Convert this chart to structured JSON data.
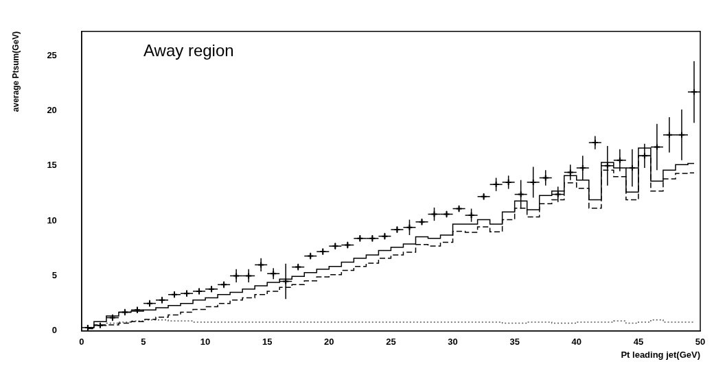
{
  "chart_data": {
    "type": "step",
    "title": "Away region",
    "xlabel": "Pt leading jet(GeV)",
    "ylabel": "average Ptsum(GeV)",
    "x": [
      0.5,
      1.5,
      2.5,
      3.5,
      4.5,
      5.5,
      6.5,
      7.5,
      8.5,
      9.5,
      10.5,
      11.5,
      12.5,
      13.5,
      14.5,
      15.5,
      16.5,
      17.5,
      18.5,
      19.5,
      20.5,
      21.5,
      22.5,
      23.5,
      24.5,
      25.5,
      26.5,
      27.5,
      28.5,
      29.5,
      30.5,
      31.5,
      32.5,
      33.5,
      34.5,
      35.5,
      36.5,
      37.5,
      38.5,
      39.5,
      40.5,
      41.5,
      42.5,
      43.5,
      44.5,
      45.5,
      46.5,
      47.5,
      48.5,
      49.5
    ],
    "xlim": [
      0,
      50
    ],
    "xticks": [
      0,
      5,
      10,
      15,
      20,
      25,
      30,
      35,
      40,
      45,
      50
    ],
    "ylim": [
      0,
      27.2
    ],
    "yticks": [
      0,
      5,
      10,
      15,
      20,
      25
    ],
    "grid": false,
    "legend": false,
    "series": [
      {
        "type": "scatter",
        "marker": "cross",
        "color": "#000000",
        "values": [
          0.3,
          0.5,
          1.2,
          1.7,
          1.9,
          2.5,
          2.8,
          3.3,
          3.4,
          3.6,
          3.8,
          4.2,
          5.0,
          5.0,
          6.0,
          5.2,
          4.5,
          5.8,
          6.8,
          7.2,
          7.7,
          7.8,
          8.4,
          8.4,
          8.6,
          9.2,
          9.4,
          9.9,
          10.6,
          10.6,
          11.1,
          10.5,
          12.2,
          13.3,
          13.5,
          12.4,
          13.5,
          13.9,
          12.4,
          14.4,
          14.8,
          17.1,
          15.0,
          15.5,
          14.8,
          15.9,
          16.7,
          17.8,
          17.8,
          21.7
        ],
        "errors": [
          0.2,
          0.2,
          0.3,
          0.3,
          0.3,
          0.3,
          0.3,
          0.3,
          0.3,
          0.3,
          0.3,
          0.3,
          0.6,
          0.6,
          0.6,
          0.5,
          1.6,
          0.3,
          0.3,
          0.3,
          0.3,
          0.3,
          0.3,
          0.3,
          0.3,
          0.3,
          0.7,
          0.3,
          0.6,
          0.3,
          0.3,
          0.6,
          0.3,
          0.6,
          0.6,
          1.3,
          1.4,
          0.7,
          0.7,
          0.7,
          1.1,
          0.6,
          1.8,
          1.0,
          1.7,
          1.1,
          2.1,
          1.6,
          2.3,
          2.8
        ],
        "xerrors": [
          0.5,
          0.5,
          0.5,
          0.5,
          0.5,
          0.5,
          0.5,
          0.5,
          0.5,
          0.5,
          0.5,
          0.5,
          0.5,
          0.5,
          0.5,
          0.5,
          0.5,
          0.5,
          0.5,
          0.5,
          0.5,
          0.5,
          0.5,
          0.5,
          0.5,
          0.5,
          0.5,
          0.5,
          0.5,
          0.5,
          0.5,
          0.5,
          0.5,
          0.5,
          0.5,
          0.5,
          0.5,
          0.5,
          0.5,
          0.5,
          0.5,
          0.5,
          0.5,
          0.5,
          0.5,
          0.5,
          0.5,
          0.5,
          0.5,
          0.5
        ]
      },
      {
        "type": "step",
        "color": "#000000",
        "line_style": "solid",
        "values": [
          0.3,
          0.85,
          1.35,
          1.7,
          1.8,
          1.9,
          2.1,
          2.3,
          2.5,
          2.8,
          3.0,
          3.3,
          3.5,
          3.8,
          4.1,
          4.4,
          4.7,
          4.95,
          5.3,
          5.6,
          5.85,
          6.25,
          6.6,
          6.9,
          7.3,
          7.6,
          7.9,
          8.55,
          8.4,
          8.7,
          9.7,
          9.7,
          10.1,
          9.7,
          10.8,
          11.8,
          11.0,
          12.3,
          12.7,
          14.1,
          13.7,
          11.9,
          15.3,
          14.8,
          12.6,
          16.6,
          13.6,
          14.6,
          15.1,
          15.2
        ]
      },
      {
        "type": "step",
        "color": "#000000",
        "line_style": "dashed",
        "values": [
          0.2,
          0.55,
          0.55,
          0.7,
          0.85,
          1.05,
          1.25,
          1.45,
          1.7,
          1.95,
          2.2,
          2.5,
          2.8,
          3.0,
          3.3,
          3.6,
          3.95,
          4.2,
          4.55,
          4.9,
          5.1,
          5.5,
          5.85,
          6.15,
          6.6,
          6.9,
          7.15,
          7.85,
          7.7,
          8.05,
          9.05,
          8.95,
          9.45,
          9.0,
          10.1,
          11.15,
          10.35,
          11.55,
          11.9,
          13.45,
          12.95,
          11.15,
          14.6,
          14.0,
          11.9,
          15.9,
          12.7,
          13.8,
          14.3,
          14.35
        ]
      },
      {
        "type": "step",
        "color": "#555555",
        "line_style": "dotted",
        "values": [
          0.2,
          0.5,
          0.7,
          0.8,
          0.9,
          1.0,
          1.0,
          0.9,
          0.9,
          0.8,
          0.8,
          0.8,
          0.8,
          0.8,
          0.8,
          0.8,
          0.8,
          0.8,
          0.8,
          0.8,
          0.8,
          0.8,
          0.8,
          0.8,
          0.8,
          0.8,
          0.8,
          0.8,
          0.8,
          0.8,
          0.8,
          0.8,
          0.8,
          0.8,
          0.7,
          0.7,
          0.8,
          0.8,
          0.7,
          0.7,
          0.8,
          0.8,
          0.8,
          0.9,
          0.7,
          0.8,
          1.0,
          0.8,
          0.8,
          0.8
        ]
      }
    ]
  }
}
